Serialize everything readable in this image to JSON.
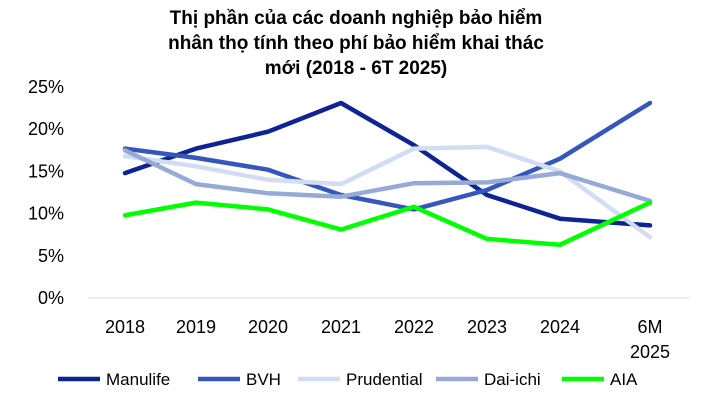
{
  "chart_data": {
    "type": "line",
    "title_lines": [
      "Thị phần của các doanh nghiệp bảo hiểm",
      "nhân thọ tính theo phí bảo hiểm khai thác",
      "mới (2018 -  6T 2025)"
    ],
    "categories": [
      "2018",
      "2019",
      "2020",
      "2021",
      "2022",
      "2023",
      "2024",
      "6M 2025"
    ],
    "y_ticks": [
      "0%",
      "5%",
      "10%",
      "15%",
      "20%",
      "25%"
    ],
    "ylim": [
      0,
      25
    ],
    "y_unit": "%",
    "grid": false,
    "legend_position": "bottom",
    "series": [
      {
        "name": "Manulife",
        "color": "#0f2494",
        "values": [
          14.8,
          17.7,
          19.7,
          23.1,
          18.1,
          12.2,
          9.4,
          8.6
        ]
      },
      {
        "name": "BVH",
        "color": "#3557bb",
        "values": [
          17.7,
          16.6,
          15.2,
          12.2,
          10.5,
          12.8,
          16.5,
          23.1
        ]
      },
      {
        "name": "Prudential",
        "color": "#d2dcf2",
        "values": [
          16.8,
          15.6,
          14.0,
          13.5,
          17.7,
          17.9,
          15.0,
          7.2
        ]
      },
      {
        "name": "Dai-ichi",
        "color": "#97a9d6",
        "values": [
          17.5,
          13.5,
          12.4,
          12.0,
          13.6,
          13.7,
          14.8,
          11.5
        ]
      },
      {
        "name": "AIA",
        "color": "#00ff00",
        "values": [
          9.8,
          11.3,
          10.5,
          8.1,
          10.8,
          7.0,
          6.3,
          11.3
        ]
      }
    ]
  }
}
